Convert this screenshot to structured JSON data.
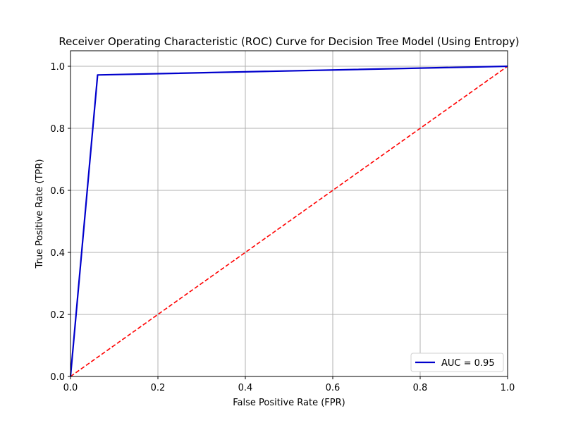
{
  "chart_data": {
    "type": "line",
    "title": "Receiver Operating Characteristic (ROC) Curve for Decision Tree Model (Using Entropy)",
    "xlabel": "False Positive Rate (FPR)",
    "ylabel": "True Positive Rate (TPR)",
    "xlim": [
      0.0,
      1.0
    ],
    "ylim": [
      0.0,
      1.05
    ],
    "x_ticks": [
      0.0,
      0.2,
      0.4,
      0.6,
      0.8,
      1.0
    ],
    "x_tick_labels": [
      "0.0",
      "0.2",
      "0.4",
      "0.6",
      "0.8",
      "1.0"
    ],
    "y_ticks": [
      0.0,
      0.2,
      0.4,
      0.6,
      0.8,
      1.0
    ],
    "y_tick_labels": [
      "0.0",
      "0.2",
      "0.4",
      "0.6",
      "0.8",
      "1.0"
    ],
    "grid": true,
    "legend_position": "bottom-right",
    "series": [
      {
        "name": "AUC = 0.95",
        "x": [
          0.0,
          0.062,
          1.0
        ],
        "y": [
          0.0,
          0.972,
          1.0
        ],
        "color": "#0000cc",
        "style": "solid"
      },
      {
        "x": [
          0.0,
          1.0
        ],
        "y": [
          0.0,
          1.0
        ],
        "color": "#ff0000",
        "style": "dashed"
      }
    ]
  }
}
